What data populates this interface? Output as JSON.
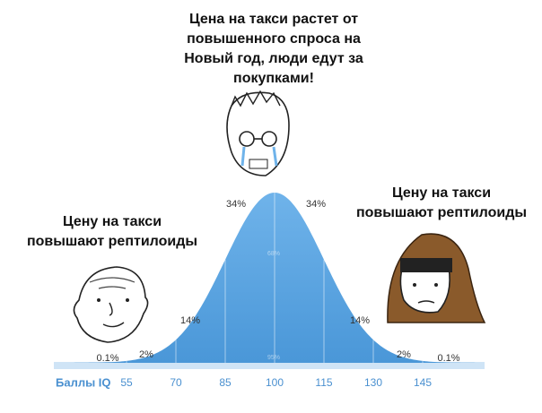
{
  "captions": {
    "top": [
      "Цена на такси растет от",
      "повышенного спроса на",
      "Новый год, люди едут за",
      "покупками!"
    ],
    "left": [
      "Цену на такси",
      "повышают рептилоиды"
    ],
    "right": [
      "Цену на такси",
      "повышают рептилоиды"
    ]
  },
  "percent_labels": {
    "left_far": "0.1%",
    "left_2": "2%",
    "left_14": "14%",
    "left_34": "34%",
    "right_34": "34%",
    "right_14": "14%",
    "right_2": "2%",
    "right_far": "0.1%"
  },
  "inner_labels": [
    "68%",
    "95%"
  ],
  "x_axis": {
    "label": "Баллы IQ",
    "ticks": [
      55,
      70,
      85,
      100,
      115,
      130,
      145
    ]
  }
}
